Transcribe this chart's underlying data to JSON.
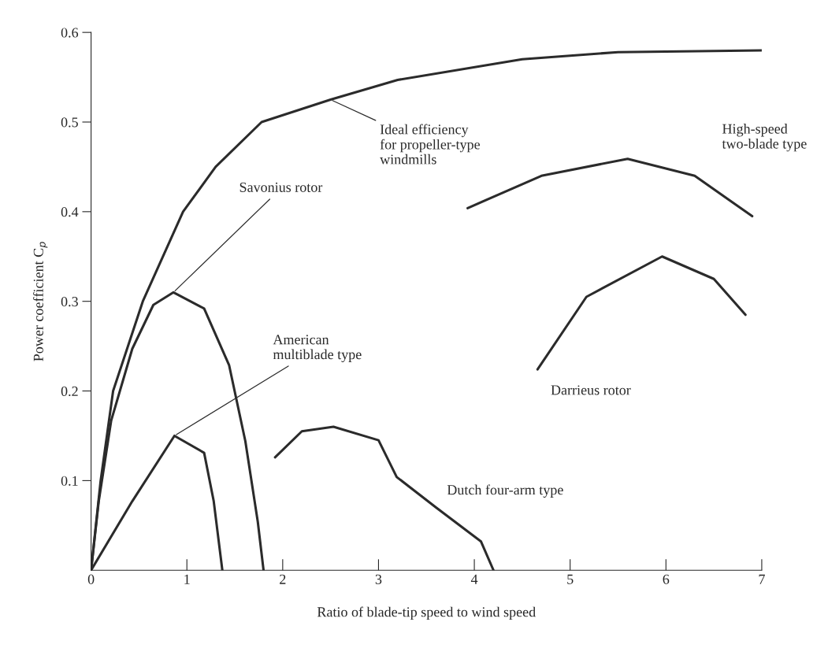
{
  "chart_data": {
    "type": "line",
    "xlabel": "Ratio of blade-tip speed to wind speed",
    "ylabel": "Power coefficient C$_{p}$",
    "xlim": [
      0,
      7
    ],
    "ylim": [
      0,
      0.6
    ],
    "xticks": [
      0,
      1,
      2,
      3,
      4,
      5,
      6,
      7
    ],
    "yticks": [
      0.1,
      0.2,
      0.3,
      0.4,
      0.5,
      0.6
    ],
    "grid": false,
    "legend": false,
    "marker": "none",
    "line_style": "solid",
    "series": [
      {
        "name": "Ideal efficiency\nfor propeller-type\nwindmills",
        "color": "#2b2b2b",
        "x": [
          0,
          0.1,
          0.23,
          0.54,
          0.96,
          1.3,
          1.78,
          2.5,
          3.2,
          4.5,
          5.5,
          7.0
        ],
        "values": [
          0,
          0.1,
          0.2,
          0.3,
          0.4,
          0.45,
          0.5,
          0.525,
          0.547,
          0.57,
          0.578,
          0.58
        ]
      },
      {
        "name": "Savonius rotor",
        "color": "#2b2b2b",
        "x": [
          0,
          0.08,
          0.21,
          0.43,
          0.65,
          0.86,
          1.18,
          1.44,
          1.61,
          1.74,
          1.8
        ],
        "values": [
          0,
          0.077,
          0.167,
          0.247,
          0.296,
          0.31,
          0.292,
          0.229,
          0.144,
          0.054,
          0
        ]
      },
      {
        "name": "American\nmultiblade type",
        "color": "#2b2b2b",
        "x": [
          0,
          0.43,
          0.87,
          1.18,
          1.28,
          1.37
        ],
        "values": [
          0,
          0.077,
          0.15,
          0.131,
          0.077,
          0
        ]
      },
      {
        "name": "Dutch four-arm type",
        "color": "#2b2b2b",
        "x": [
          1.92,
          2.2,
          2.53,
          3.0,
          3.19,
          3.6,
          4.07,
          4.2
        ],
        "values": [
          0.126,
          0.155,
          0.16,
          0.145,
          0.104,
          0.07,
          0.032,
          0
        ]
      },
      {
        "name": "High-speed\ntwo-blade type",
        "color": "#2b2b2b",
        "x": [
          3.93,
          4.7,
          5.6,
          6.3,
          6.9
        ],
        "values": [
          0.404,
          0.44,
          0.459,
          0.44,
          0.395
        ]
      },
      {
        "name": "Darrieus rotor",
        "color": "#2b2b2b",
        "x": [
          4.66,
          5.17,
          5.96,
          6.5,
          6.83
        ],
        "values": [
          0.224,
          0.305,
          0.35,
          0.325,
          0.285
        ]
      }
    ]
  }
}
